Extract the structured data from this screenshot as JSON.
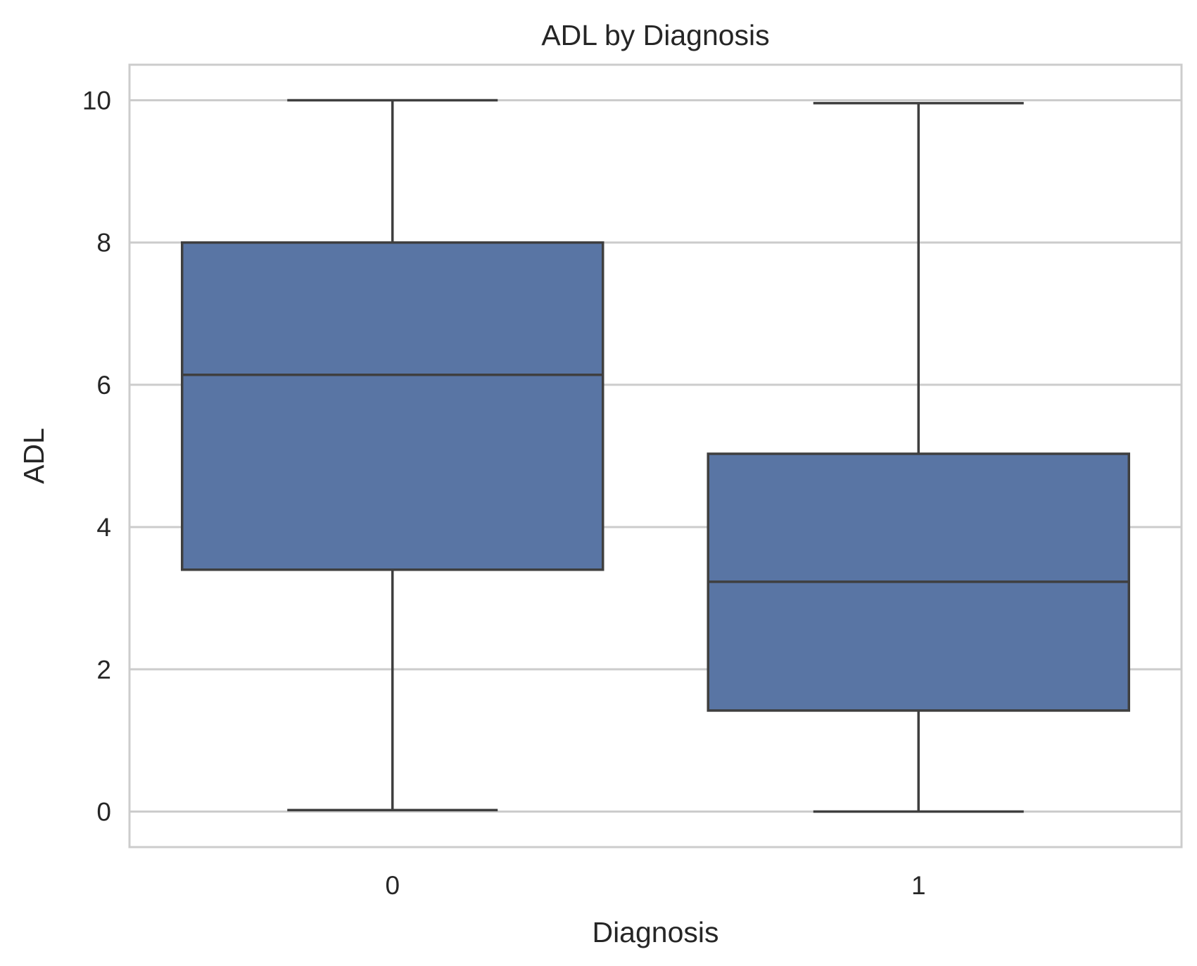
{
  "chart_data": {
    "type": "box",
    "title": "ADL by Diagnosis",
    "xlabel": "Diagnosis",
    "ylabel": "ADL",
    "categories": [
      "0",
      "1"
    ],
    "ylim": [
      -0.5,
      10.5
    ],
    "yticks": [
      0,
      2,
      4,
      6,
      8,
      10
    ],
    "grid": true,
    "box_color": "#5975a4",
    "edge_color": "#3f3f3f",
    "grid_color": "#cccccc",
    "boxes": [
      {
        "category": "0",
        "whisker_low": 0.02,
        "q1": 3.4,
        "median": 6.14,
        "q3": 8.0,
        "whisker_high": 10.0
      },
      {
        "category": "1",
        "whisker_low": 0.0,
        "q1": 1.42,
        "median": 3.23,
        "q3": 5.03,
        "whisker_high": 9.96
      }
    ]
  }
}
